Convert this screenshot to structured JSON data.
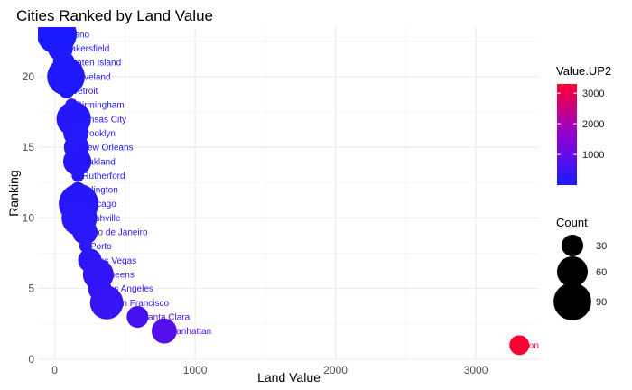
{
  "chart_data": {
    "type": "scatter",
    "title": "Cities Ranked by Land Value",
    "xlabel": "Land Value",
    "ylabel": "Ranking",
    "xlim": [
      -120,
      3450
    ],
    "ylim": [
      0,
      23.5
    ],
    "x_ticks": [
      0,
      1000,
      2000,
      3000
    ],
    "y_ticks": [
      0,
      5,
      10,
      15,
      20
    ],
    "grid": true,
    "color_variable": "Value.UP2",
    "color_range": [
      1,
      3300
    ],
    "color_low": "#1a1aff",
    "color_high": "#ff0000",
    "color_legend_ticks": [
      1000,
      2000,
      3000
    ],
    "size_variable": "Count",
    "size_legend_ticks": [
      30,
      60,
      90
    ],
    "legend_position": "right",
    "points": [
      {
        "label": "Fresno",
        "x": 15,
        "y": 23,
        "count": 100,
        "value_up2": 1
      },
      {
        "label": "Bakersfield",
        "x": 40,
        "y": 22,
        "count": 40,
        "value_up2": 40
      },
      {
        "label": "Staten Island",
        "x": 65,
        "y": 21,
        "count": 30,
        "value_up2": 70
      },
      {
        "label": "Cleveland",
        "x": 80,
        "y": 20,
        "count": 90,
        "value_up2": 80
      },
      {
        "label": "Detroit",
        "x": 85,
        "y": 19,
        "count": 15,
        "value_up2": 90
      },
      {
        "label": "Birmingham",
        "x": 120,
        "y": 18,
        "count": 10,
        "value_up2": 120
      },
      {
        "label": "Kansas City",
        "x": 135,
        "y": 17,
        "count": 75,
        "value_up2": 135
      },
      {
        "label": "Brooklyn",
        "x": 150,
        "y": 16,
        "count": 40,
        "value_up2": 150
      },
      {
        "label": "New Orleans",
        "x": 155,
        "y": 15,
        "count": 40,
        "value_up2": 155
      },
      {
        "label": "Oakland",
        "x": 160,
        "y": 14,
        "count": 50,
        "value_up2": 160
      },
      {
        "label": "Rutherford",
        "x": 165,
        "y": 13,
        "count": 10,
        "value_up2": 165
      },
      {
        "label": "Arlington",
        "x": 165,
        "y": 12,
        "count": 15,
        "value_up2": 165
      },
      {
        "label": "Chicago",
        "x": 170,
        "y": 11,
        "count": 100,
        "value_up2": 170
      },
      {
        "label": "Nashville",
        "x": 175,
        "y": 10,
        "count": 80,
        "value_up2": 175
      },
      {
        "label": "Rio de Janeiro",
        "x": 215,
        "y": 9,
        "count": 40,
        "value_up2": 215
      },
      {
        "label": "Porto",
        "x": 220,
        "y": 8,
        "count": 10,
        "value_up2": 220
      },
      {
        "label": "Las Vegas",
        "x": 250,
        "y": 7,
        "count": 35,
        "value_up2": 250
      },
      {
        "label": "Queens",
        "x": 310,
        "y": 6,
        "count": 60,
        "value_up2": 310
      },
      {
        "label": "Los Angeles",
        "x": 320,
        "y": 5,
        "count": 35,
        "value_up2": 320
      },
      {
        "label": "San Francisco",
        "x": 370,
        "y": 4,
        "count": 70,
        "value_up2": 370
      },
      {
        "label": "Santa Clara",
        "x": 590,
        "y": 3,
        "count": 30,
        "value_up2": 590
      },
      {
        "label": "Manhattan",
        "x": 780,
        "y": 2,
        "count": 40,
        "value_up2": 780
      },
      {
        "label": "London",
        "x": 3310,
        "y": 1,
        "count": 25,
        "value_up2": 3310
      }
    ]
  }
}
